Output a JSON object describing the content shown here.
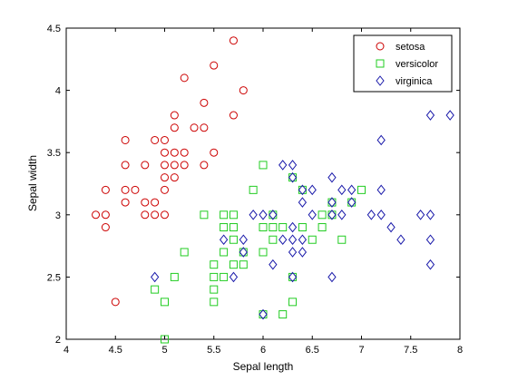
{
  "chart_data": {
    "type": "scatter",
    "title": "",
    "xlabel": "Sepal length",
    "ylabel": "Sepal width",
    "xlim": [
      4,
      8
    ],
    "ylim": [
      2,
      4.5
    ],
    "xticks": [
      "4",
      "4.5",
      "5",
      "5.5",
      "6",
      "6.5",
      "7",
      "7.5",
      "8"
    ],
    "yticks": [
      "2",
      "2.5",
      "3",
      "3.5",
      "4",
      "4.5"
    ],
    "grid": false,
    "legend_position": "top-right",
    "series": [
      {
        "name": "setosa",
        "marker": "circle",
        "color": "#cc0000",
        "points": [
          [
            4.3,
            3.0
          ],
          [
            4.4,
            2.9
          ],
          [
            4.4,
            3.0
          ],
          [
            4.4,
            3.2
          ],
          [
            4.5,
            2.3
          ],
          [
            4.6,
            3.1
          ],
          [
            4.6,
            3.2
          ],
          [
            4.6,
            3.4
          ],
          [
            4.6,
            3.6
          ],
          [
            4.7,
            3.2
          ],
          [
            4.8,
            3.0
          ],
          [
            4.8,
            3.1
          ],
          [
            4.8,
            3.4
          ],
          [
            4.9,
            3.0
          ],
          [
            4.9,
            3.1
          ],
          [
            4.9,
            3.6
          ],
          [
            5.0,
            3.0
          ],
          [
            5.0,
            3.2
          ],
          [
            5.0,
            3.3
          ],
          [
            5.0,
            3.4
          ],
          [
            5.0,
            3.5
          ],
          [
            5.0,
            3.6
          ],
          [
            5.1,
            3.3
          ],
          [
            5.1,
            3.4
          ],
          [
            5.1,
            3.5
          ],
          [
            5.1,
            3.7
          ],
          [
            5.1,
            3.8
          ],
          [
            5.2,
            3.4
          ],
          [
            5.2,
            3.5
          ],
          [
            5.2,
            4.1
          ],
          [
            5.3,
            3.7
          ],
          [
            5.4,
            3.4
          ],
          [
            5.4,
            3.7
          ],
          [
            5.4,
            3.9
          ],
          [
            5.5,
            3.5
          ],
          [
            5.5,
            4.2
          ],
          [
            5.7,
            3.8
          ],
          [
            5.7,
            4.4
          ],
          [
            5.8,
            4.0
          ]
        ]
      },
      {
        "name": "versicolor",
        "marker": "square",
        "color": "#22cc22",
        "points": [
          [
            4.9,
            2.4
          ],
          [
            5.0,
            2.0
          ],
          [
            5.0,
            2.3
          ],
          [
            5.1,
            2.5
          ],
          [
            5.2,
            2.7
          ],
          [
            5.4,
            3.0
          ],
          [
            5.5,
            2.3
          ],
          [
            5.5,
            2.4
          ],
          [
            5.5,
            2.5
          ],
          [
            5.5,
            2.6
          ],
          [
            5.6,
            2.5
          ],
          [
            5.6,
            2.7
          ],
          [
            5.6,
            2.9
          ],
          [
            5.6,
            3.0
          ],
          [
            5.7,
            2.6
          ],
          [
            5.7,
            2.8
          ],
          [
            5.7,
            2.9
          ],
          [
            5.7,
            3.0
          ],
          [
            5.8,
            2.6
          ],
          [
            5.8,
            2.7
          ],
          [
            5.9,
            3.2
          ],
          [
            6.0,
            2.2
          ],
          [
            6.0,
            2.7
          ],
          [
            6.0,
            2.9
          ],
          [
            6.0,
            3.4
          ],
          [
            6.1,
            2.8
          ],
          [
            6.1,
            2.9
          ],
          [
            6.1,
            3.0
          ],
          [
            6.2,
            2.2
          ],
          [
            6.2,
            2.9
          ],
          [
            6.3,
            2.3
          ],
          [
            6.3,
            2.5
          ],
          [
            6.3,
            3.3
          ],
          [
            6.4,
            2.9
          ],
          [
            6.4,
            3.2
          ],
          [
            6.5,
            2.8
          ],
          [
            6.6,
            2.9
          ],
          [
            6.6,
            3.0
          ],
          [
            6.7,
            3.0
          ],
          [
            6.7,
            3.1
          ],
          [
            6.8,
            2.8
          ],
          [
            6.9,
            3.1
          ],
          [
            7.0,
            3.2
          ]
        ]
      },
      {
        "name": "virginica",
        "marker": "diamond",
        "color": "#1a1aaa",
        "points": [
          [
            4.9,
            2.5
          ],
          [
            5.6,
            2.8
          ],
          [
            5.7,
            2.5
          ],
          [
            5.8,
            2.7
          ],
          [
            5.8,
            2.8
          ],
          [
            5.9,
            3.0
          ],
          [
            6.0,
            2.2
          ],
          [
            6.0,
            3.0
          ],
          [
            6.1,
            3.0
          ],
          [
            6.1,
            2.6
          ],
          [
            6.2,
            2.8
          ],
          [
            6.2,
            3.4
          ],
          [
            6.3,
            2.5
          ],
          [
            6.3,
            2.7
          ],
          [
            6.3,
            2.8
          ],
          [
            6.3,
            2.9
          ],
          [
            6.3,
            3.3
          ],
          [
            6.3,
            3.4
          ],
          [
            6.4,
            2.7
          ],
          [
            6.4,
            2.8
          ],
          [
            6.4,
            3.1
          ],
          [
            6.4,
            3.2
          ],
          [
            6.5,
            3.0
          ],
          [
            6.5,
            3.2
          ],
          [
            6.7,
            2.5
          ],
          [
            6.7,
            3.0
          ],
          [
            6.7,
            3.1
          ],
          [
            6.7,
            3.3
          ],
          [
            6.8,
            3.0
          ],
          [
            6.8,
            3.2
          ],
          [
            6.9,
            3.1
          ],
          [
            6.9,
            3.2
          ],
          [
            7.1,
            3.0
          ],
          [
            7.2,
            3.0
          ],
          [
            7.2,
            3.2
          ],
          [
            7.2,
            3.6
          ],
          [
            7.3,
            2.9
          ],
          [
            7.4,
            2.8
          ],
          [
            7.6,
            3.0
          ],
          [
            7.7,
            2.6
          ],
          [
            7.7,
            2.8
          ],
          [
            7.7,
            3.0
          ],
          [
            7.7,
            3.8
          ],
          [
            7.9,
            3.8
          ]
        ]
      }
    ]
  }
}
